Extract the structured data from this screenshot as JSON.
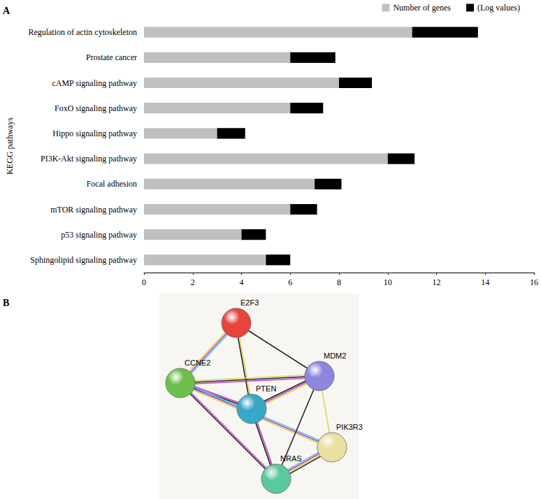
{
  "chart_data": {
    "type": "bar",
    "annotation": "A",
    "orientation": "horizontal",
    "stacked": true,
    "ylabel": "KEGG pathways",
    "categories": [
      "Regulation of actin cytoskeleton",
      "Prostate cancer",
      "cAMP signaling pathway",
      "FoxO signaling pathway",
      "Hippo signaling pathway",
      "PI3K-Akt signaling pathway",
      "Focal adhesion",
      "mTOR signaling pathway",
      "p53 signaling pathway",
      "Sphingolipid signaling pathway"
    ],
    "series": [
      {
        "name": "Number of genes",
        "color": "#c0c0c0",
        "values": [
          11,
          6,
          8,
          6,
          3,
          10,
          7,
          6,
          4,
          5
        ]
      },
      {
        "name": "(Log values)",
        "color": "#000000",
        "values": [
          2.7,
          1.85,
          1.35,
          1.35,
          1.15,
          1.1,
          1.1,
          1.1,
          1.0,
          1.0
        ]
      }
    ],
    "xlim": [
      0,
      16
    ],
    "xticks": [
      0,
      2,
      4,
      6,
      8,
      10,
      12,
      14,
      16
    ],
    "grid": false,
    "legend": "top right"
  },
  "network": {
    "panel_label": "B",
    "nodes": [
      {
        "label": "E2F3",
        "color": "#e8433c"
      },
      {
        "label": "MDM2",
        "color": "#8c86e0"
      },
      {
        "label": "CCNE2",
        "color": "#6cc04a"
      },
      {
        "label": "PTEN",
        "color": "#37a8c8"
      },
      {
        "label": "PIK3R3",
        "color": "#ece0a0"
      },
      {
        "label": "NRAS",
        "color": "#5cc8a0"
      }
    ],
    "edges": [
      {
        "source": "E2F3",
        "target": "CCNE2",
        "colors": [
          "#4fc8e8",
          "#c040c0",
          "#d8d850"
        ]
      },
      {
        "source": "E2F3",
        "target": "MDM2",
        "colors": [
          "#222222"
        ]
      },
      {
        "source": "E2F3",
        "target": "PTEN",
        "colors": [
          "#d8d850",
          "#222222"
        ]
      },
      {
        "source": "CCNE2",
        "target": "MDM2",
        "colors": [
          "#d8d850",
          "#222222",
          "#c040c0"
        ]
      },
      {
        "source": "CCNE2",
        "target": "PTEN",
        "colors": [
          "#c040c0",
          "#222222",
          "#4fc8e8"
        ]
      },
      {
        "source": "CCNE2",
        "target": "PIK3R3",
        "colors": [
          "#4fc8e8",
          "#c040c0",
          "#d8d850"
        ]
      },
      {
        "source": "CCNE2",
        "target": "NRAS",
        "colors": [
          "#c040c0",
          "#222222"
        ]
      },
      {
        "source": "MDM2",
        "target": "PTEN",
        "colors": [
          "#d8d850",
          "#c040c0",
          "#222222"
        ]
      },
      {
        "source": "MDM2",
        "target": "NRAS",
        "colors": [
          "#222222"
        ]
      },
      {
        "source": "MDM2",
        "target": "PIK3R3",
        "colors": [
          "#d8d850"
        ]
      },
      {
        "source": "PTEN",
        "target": "NRAS",
        "colors": [
          "#c040c0",
          "#222222"
        ]
      },
      {
        "source": "NRAS",
        "target": "PIK3R3",
        "colors": [
          "#4fc8e8",
          "#c040c0",
          "#d8d850",
          "#222222"
        ]
      }
    ]
  }
}
